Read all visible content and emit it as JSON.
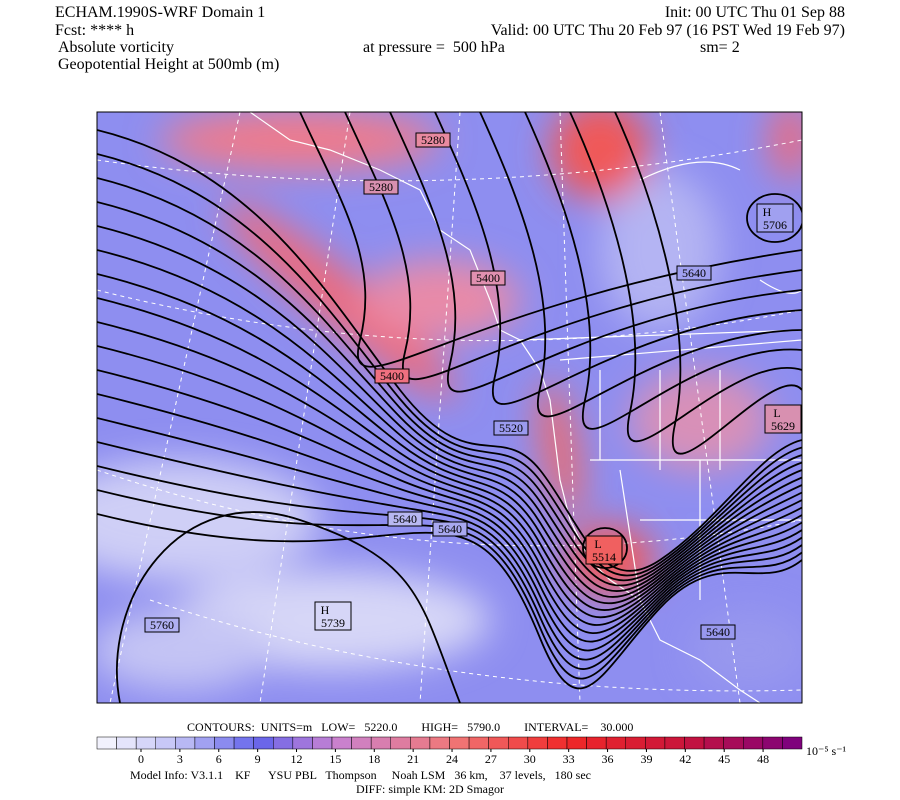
{
  "header": {
    "title": "ECHAM.1990S-WRF Domain 1",
    "init": "Init: 00 UTC Thu 01 Sep 88",
    "forecast": "Fcst: **** h",
    "valid": "Valid: 00 UTC Thu 20 Feb 97 (16 PST Wed 19 Feb 97)",
    "field": "Absolute vorticity",
    "pressure": "at pressure =  500 hPa",
    "smoothing": "sm= 2",
    "contour_field": "Geopotential Height at 500mb (m)"
  },
  "map": {
    "contour_labels": [
      "5280",
      "5280",
      "5400",
      "5400",
      "5520",
      "5640",
      "5640",
      "5640",
      "5640",
      "5760"
    ],
    "centers": [
      {
        "type": "H",
        "value": "5706"
      },
      {
        "type": "L",
        "value": "5629"
      },
      {
        "type": "L",
        "value": "5514"
      },
      {
        "type": "H",
        "value": "5739"
      }
    ]
  },
  "footer": {
    "contours": "CONTOURS:  UNITS=m   LOW=   5220.0        HIGH=   5790.0        INTERVAL=    30.000",
    "colorbar_ticks": [
      0,
      3,
      6,
      9,
      12,
      15,
      18,
      21,
      24,
      27,
      30,
      33,
      36,
      39,
      42,
      45,
      48
    ],
    "colorbar_units": "10⁻⁵ s⁻¹",
    "model_info": "Model Info: V3.1.1    KF      YSU PBL   Thompson     Noah LSM   36 km,    37 levels,   180 sec",
    "diff": "DIFF: simple KM: 2D Smagor"
  }
}
